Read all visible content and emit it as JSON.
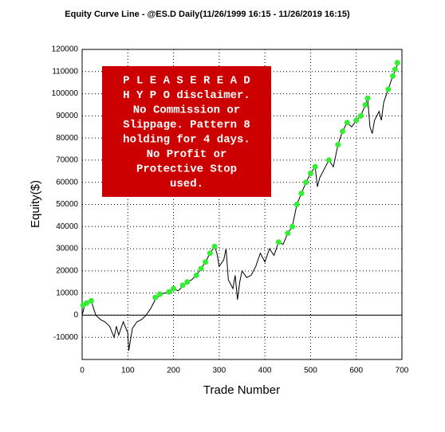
{
  "chart_data": {
    "type": "line",
    "title": "Equity Curve Line - @ES.D Daily(11/26/1999 16:15 - 11/26/2019 16:15)",
    "x_label": "Trade Number",
    "y_label": "Equity($)",
    "note": [
      "P L E A S E   R E A D",
      "H Y P O disclaimer.",
      "No Commission or",
      "Slippage.  Pattern 8",
      "holding for 4 days.",
      "No Profit or",
      "Protective Stop",
      "used."
    ],
    "note_color": "#cc0000",
    "line_color": "#000000",
    "x": [
      0,
      5,
      10,
      20,
      25,
      30,
      40,
      50,
      60,
      70,
      75,
      80,
      90,
      100,
      102,
      110,
      120,
      130,
      140,
      150,
      160,
      170,
      180,
      190,
      200,
      210,
      220,
      230,
      240,
      250,
      260,
      270,
      280,
      290,
      295,
      300,
      310,
      315,
      320,
      330,
      335,
      340,
      345,
      350,
      360,
      370,
      380,
      390,
      400,
      410,
      420,
      430,
      440,
      450,
      460,
      470,
      480,
      490,
      500,
      510,
      515,
      520,
      530,
      540,
      550,
      560,
      570,
      580,
      590,
      600,
      610,
      620,
      625,
      630,
      635,
      640,
      650,
      655,
      660,
      670,
      680,
      690
    ],
    "values": [
      0,
      4000,
      5000,
      6500,
      3000,
      0,
      -2000,
      -3000,
      -5000,
      -10000,
      -5000,
      -9000,
      -3000,
      -8000,
      -16000,
      -6000,
      -3000,
      -2000,
      0,
      3000,
      7000,
      9000,
      10000,
      10000,
      12000,
      11000,
      13000,
      15000,
      16000,
      18000,
      21000,
      24000,
      28000,
      31000,
      28000,
      22000,
      25000,
      30000,
      16000,
      12000,
      18000,
      7000,
      15000,
      20000,
      17000,
      18000,
      22000,
      28000,
      24000,
      30000,
      27000,
      33000,
      32000,
      37000,
      40000,
      50000,
      55000,
      60000,
      64000,
      67000,
      58000,
      62000,
      66000,
      70000,
      67000,
      77000,
      83000,
      87000,
      85000,
      88000,
      90000,
      95000,
      98000,
      85000,
      82000,
      88000,
      92000,
      88000,
      96000,
      102000,
      108000,
      113000
    ],
    "highs_color": "#33ee33",
    "highs_x": [
      2,
      10,
      20,
      160,
      170,
      190,
      200,
      220,
      230,
      250,
      260,
      270,
      280,
      290,
      430,
      450,
      460,
      470,
      480,
      490,
      500,
      510,
      540,
      560,
      570,
      580,
      600,
      610,
      620,
      625,
      670,
      680,
      685,
      690
    ],
    "highs_values": [
      4500,
      5500,
      6500,
      8000,
      9500,
      10500,
      12000,
      13500,
      15000,
      18000,
      21000,
      24000,
      28000,
      31000,
      33000,
      37000,
      40000,
      50000,
      55000,
      60000,
      64000,
      67000,
      70000,
      77000,
      83000,
      87000,
      88000,
      90000,
      95000,
      98000,
      102000,
      108000,
      111000,
      114000
    ],
    "xlim": [
      0,
      700
    ],
    "xticks": [
      0,
      100,
      200,
      300,
      400,
      500,
      600,
      700
    ],
    "ylim": [
      -20000,
      120000
    ],
    "yticks": [
      -10000,
      0,
      10000,
      20000,
      30000,
      40000,
      50000,
      60000,
      70000,
      80000,
      90000,
      100000,
      110000,
      120000
    ],
    "grid": true
  }
}
